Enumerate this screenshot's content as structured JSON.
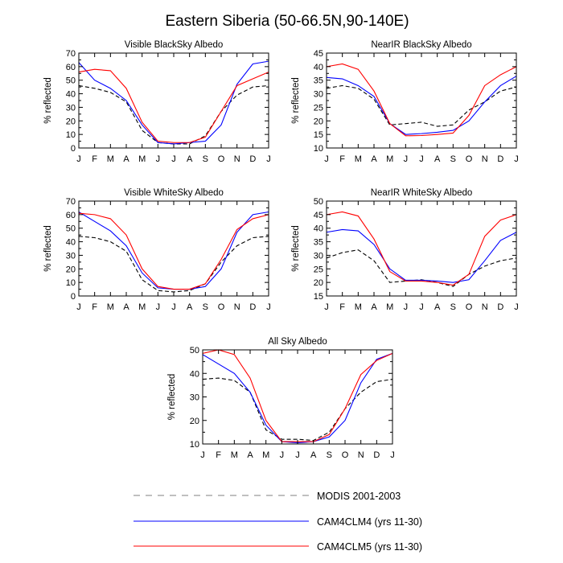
{
  "page_title": "Eastern Siberia (50-66.5N,90-140E)",
  "colors": {
    "modis": "#000000",
    "clm4": "#0000ff",
    "clm5": "#ff0000",
    "legend_modis": "#999999"
  },
  "legend": {
    "modis": "MODIS 2001-2003",
    "clm4": "CAM4CLM4 (yrs 11-30)",
    "clm5": "CAM4CLM5 (yrs 11-30)"
  },
  "chart_data": [
    {
      "type": "line",
      "title": "Visible BlackSky Albedo",
      "ylabel": "% reflected",
      "xlabel": "",
      "categories": [
        "J",
        "F",
        "M",
        "A",
        "M",
        "J",
        "J",
        "A",
        "S",
        "O",
        "N",
        "D",
        "J"
      ],
      "ylim": [
        0,
        70
      ],
      "yticks": [
        0,
        10,
        20,
        30,
        40,
        50,
        60,
        70
      ],
      "series": [
        {
          "name": "MODIS 2001-2003",
          "values": [
            46,
            44,
            41,
            34,
            13,
            4,
            3,
            3,
            9,
            27,
            39,
            45,
            46
          ]
        },
        {
          "name": "CAM4CLM4 (yrs 11-30)",
          "values": [
            63,
            50,
            44,
            35,
            17,
            4,
            3,
            4,
            5,
            17,
            47,
            62,
            64
          ]
        },
        {
          "name": "CAM4CLM5 (yrs 11-30)",
          "values": [
            56,
            58,
            57,
            44,
            19,
            5,
            4,
            4,
            8,
            27,
            46,
            51,
            56
          ]
        }
      ]
    },
    {
      "type": "line",
      "title": "NearIR BlackSky Albedo",
      "ylabel": "% reflected",
      "xlabel": "",
      "categories": [
        "J",
        "F",
        "M",
        "A",
        "M",
        "J",
        "J",
        "A",
        "S",
        "O",
        "N",
        "D",
        "J"
      ],
      "ylim": [
        10,
        45
      ],
      "yticks": [
        10,
        15,
        20,
        25,
        30,
        35,
        40,
        45
      ],
      "series": [
        {
          "name": "MODIS 2001-2003",
          "values": [
            32,
            33,
            32,
            28,
            18.5,
            19,
            19.5,
            18,
            18.5,
            24,
            27,
            31,
            32.5
          ]
        },
        {
          "name": "CAM4CLM4 (yrs 11-30)",
          "values": [
            36,
            35.5,
            33,
            29,
            19,
            15,
            15.3,
            15.8,
            16.5,
            20,
            27,
            33,
            36.5
          ]
        },
        {
          "name": "CAM4CLM5 (yrs 11-30)",
          "values": [
            40,
            41,
            39,
            31,
            19,
            14.5,
            14.6,
            15,
            15.5,
            22,
            33,
            37,
            40
          ]
        }
      ]
    },
    {
      "type": "line",
      "title": "Visible WhiteSky Albedo",
      "ylabel": "% reflected",
      "xlabel": "",
      "categories": [
        "J",
        "F",
        "M",
        "A",
        "M",
        "J",
        "J",
        "A",
        "S",
        "O",
        "N",
        "D",
        "J"
      ],
      "ylim": [
        0,
        70
      ],
      "yticks": [
        0,
        10,
        20,
        30,
        40,
        50,
        60,
        70
      ],
      "series": [
        {
          "name": "MODIS 2001-2003",
          "values": [
            44,
            43,
            40,
            33,
            12,
            4,
            3,
            4,
            9,
            25,
            37,
            43,
            44
          ]
        },
        {
          "name": "CAM4CLM4 (yrs 11-30)",
          "values": [
            62,
            55,
            48,
            37,
            17,
            6,
            5,
            5,
            7,
            20,
            47,
            60,
            62
          ]
        },
        {
          "name": "CAM4CLM5 (yrs 11-30)",
          "values": [
            61,
            60,
            57,
            45,
            20,
            7,
            5,
            5,
            9,
            27,
            49,
            57,
            60
          ]
        }
      ]
    },
    {
      "type": "line",
      "title": "NearIR WhiteSky Albedo",
      "ylabel": "% reflected",
      "xlabel": "",
      "categories": [
        "J",
        "F",
        "M",
        "A",
        "M",
        "J",
        "J",
        "A",
        "S",
        "O",
        "N",
        "D",
        "J"
      ],
      "ylim": [
        15,
        50
      ],
      "yticks": [
        15,
        20,
        25,
        30,
        35,
        40,
        45,
        50
      ],
      "series": [
        {
          "name": "MODIS 2001-2003",
          "values": [
            29,
            31,
            32,
            28,
            20,
            20.5,
            21,
            20,
            18.5,
            23,
            26,
            28,
            29
          ]
        },
        {
          "name": "CAM4CLM4 (yrs 11-30)",
          "values": [
            38.5,
            39.5,
            39,
            34,
            25,
            20.8,
            20.8,
            20.5,
            20,
            21,
            28,
            35.5,
            38.5
          ]
        },
        {
          "name": "CAM4CLM5 (yrs 11-30)",
          "values": [
            45,
            46,
            44.5,
            36,
            24,
            20.5,
            20.5,
            20,
            19,
            23,
            37,
            43,
            45
          ]
        }
      ]
    },
    {
      "type": "line",
      "title": "All Sky Albedo",
      "ylabel": "% reflected",
      "xlabel": "",
      "categories": [
        "J",
        "F",
        "M",
        "A",
        "M",
        "J",
        "J",
        "A",
        "S",
        "O",
        "N",
        "D",
        "J"
      ],
      "ylim": [
        10,
        50
      ],
      "yticks": [
        10,
        20,
        30,
        40,
        50
      ],
      "series": [
        {
          "name": "MODIS 2001-2003",
          "values": [
            37.5,
            38,
            37,
            32,
            16,
            12,
            12,
            11.5,
            15,
            25,
            32,
            36.5,
            37.5
          ]
        },
        {
          "name": "CAM4CLM4 (yrs 11-30)",
          "values": [
            48,
            44,
            40,
            32,
            18,
            11,
            10.5,
            11,
            13,
            20,
            36,
            46,
            48.5
          ]
        },
        {
          "name": "CAM4CLM5 (yrs 11-30)",
          "values": [
            48.5,
            50,
            48,
            38,
            20,
            11,
            11,
            11,
            14,
            25,
            39.5,
            45.5,
            48.5
          ]
        }
      ]
    }
  ]
}
